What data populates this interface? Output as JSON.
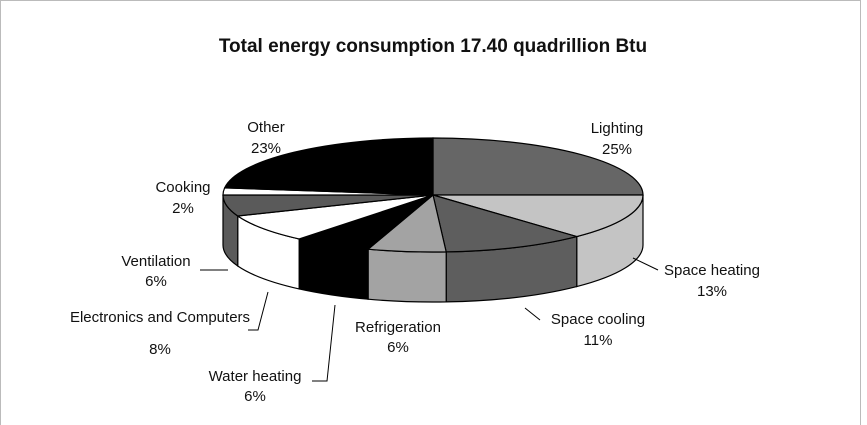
{
  "chart_data": {
    "type": "pie",
    "title": "Total energy consumption 17.40 quadrillion Btu",
    "categories": [
      "Lighting",
      "Space heating",
      "Space cooling",
      "Refrigeration",
      "Water heating",
      "Electronics and Computers",
      "Ventilation",
      "Cooking",
      "Other"
    ],
    "values": [
      25,
      13,
      11,
      6,
      6,
      8,
      6,
      2,
      23
    ],
    "value_labels": [
      "25%",
      "13%",
      "11%",
      "6%",
      "6%",
      "8%",
      "6%",
      "2%",
      "23%"
    ],
    "colors": [
      "#666666",
      "#c4c4c4",
      "#5e5e5e",
      "#a3a3a3",
      "#000000",
      "#ffffff",
      "#5a5a5a",
      "#ffffff",
      "#000000"
    ]
  }
}
